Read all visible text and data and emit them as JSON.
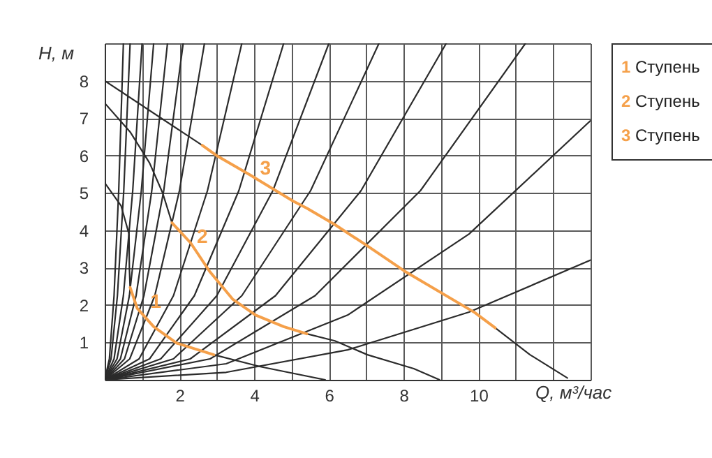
{
  "chart_data": {
    "type": "line",
    "xlabel": "Q, м³/час",
    "ylabel": "H, м",
    "xlim": [
      0,
      13
    ],
    "ylim": [
      0,
      9
    ],
    "xticks": [
      {
        "value": 0,
        "label": null
      },
      {
        "value": 1,
        "label": null
      },
      2,
      {
        "value": 3,
        "label": null
      },
      4,
      {
        "value": 5,
        "label": null
      },
      6,
      {
        "value": 7,
        "label": null
      },
      8,
      {
        "value": 9,
        "label": null
      },
      10,
      {
        "value": 11,
        "label": null
      },
      {
        "value": 12,
        "label": null
      },
      {
        "value": 13,
        "label": null
      }
    ],
    "yticks": [
      {
        "value": 0,
        "label": null
      },
      1,
      2,
      3,
      4,
      5,
      6,
      7,
      8,
      {
        "value": 9,
        "label": null
      }
    ],
    "grid": true,
    "marker": "none",
    "line_style": "solid",
    "annotations": [
      {
        "text": "1",
        "x": 1.37,
        "y": 1.73
      },
      {
        "text": "2",
        "x": 2.61,
        "y": 3.47
      },
      {
        "text": "3",
        "x": 4.3,
        "y": 5.3
      }
    ],
    "series": [
      {
        "color": "#2b2b2b",
        "x": [
          0,
          0.125,
          0.25,
          0.375,
          0.5
        ],
        "values": [
          0,
          0.56,
          2.25,
          5.06,
          9
        ]
      },
      {
        "color": "#2b2b2b",
        "x": [
          0,
          0.17,
          0.34,
          0.51,
          0.68
        ],
        "values": [
          0,
          0.56,
          2.25,
          5.06,
          9
        ]
      },
      {
        "color": "#2b2b2b",
        "x": [
          0,
          0.25,
          0.5,
          0.75,
          1.0
        ],
        "values": [
          0,
          0.56,
          2.25,
          5.06,
          9
        ]
      },
      {
        "color": "#2b2b2b",
        "x": [
          0,
          0.33,
          0.66,
          0.98,
          1.31
        ],
        "values": [
          0,
          0.56,
          2.25,
          5.06,
          9
        ]
      },
      {
        "color": "#2b2b2b",
        "x": [
          0,
          0.42,
          0.84,
          1.26,
          1.68
        ],
        "values": [
          0,
          0.56,
          2.25,
          5.06,
          9
        ]
      },
      {
        "color": "#2b2b2b",
        "x": [
          0,
          0.53,
          1.05,
          1.58,
          2.1
        ],
        "values": [
          0,
          0.56,
          2.25,
          5.06,
          9
        ]
      },
      {
        "color": "#2b2b2b",
        "x": [
          0,
          0.67,
          1.34,
          2.0,
          2.67
        ],
        "values": [
          0,
          0.56,
          2.25,
          5.06,
          9
        ]
      },
      {
        "color": "#2b2b2b",
        "x": [
          0,
          0.92,
          1.84,
          2.75,
          3.67
        ],
        "values": [
          0,
          0.56,
          2.25,
          5.06,
          9
        ]
      },
      {
        "color": "#2b2b2b",
        "x": [
          0,
          1.2,
          2.4,
          3.59,
          4.79
        ],
        "values": [
          0,
          0.56,
          2.25,
          5.06,
          9
        ]
      },
      {
        "color": "#2b2b2b",
        "x": [
          0,
          1.5,
          3.0,
          4.5,
          6.0
        ],
        "values": [
          0,
          0.56,
          2.25,
          5.06,
          9
        ]
      },
      {
        "color": "#2b2b2b",
        "x": [
          0,
          1.84,
          3.67,
          5.51,
          7.34
        ],
        "values": [
          0,
          0.56,
          2.25,
          5.06,
          9
        ]
      },
      {
        "color": "#2b2b2b",
        "x": [
          0,
          2.29,
          4.57,
          6.86,
          9.14
        ],
        "values": [
          0,
          0.56,
          2.25,
          5.06,
          9
        ]
      },
      {
        "color": "#2b2b2b",
        "x": [
          0,
          2.82,
          5.63,
          8.45,
          11.26
        ],
        "values": [
          0,
          0.56,
          2.25,
          5.06,
          9
        ]
      },
      {
        "color": "#2b2b2b",
        "x": [
          0,
          3.25,
          6.5,
          9.75,
          13
        ],
        "values": [
          0,
          0.43,
          1.73,
          3.9,
          6.93
        ]
      },
      {
        "color": "#2b2b2b",
        "x": [
          0,
          3.25,
          6.5,
          9.75,
          13
        ],
        "values": [
          0,
          0.2,
          0.8,
          1.81,
          3.2
        ]
      },
      {
        "color": "#2b2b2b",
        "x": [
          0,
          0.44,
          0.65,
          0.66,
          0.68
        ],
        "values": [
          5.27,
          4.65,
          3.9,
          3.0,
          2.47
        ]
      },
      {
        "color": "#2b2b2b",
        "x": [
          2.92,
          4.17,
          5.9
        ],
        "values": [
          0.67,
          0.35,
          0
        ]
      },
      {
        "color": "#2b2b2b",
        "x": [
          0,
          0.68,
          1.2,
          1.55,
          1.8
        ],
        "values": [
          7.4,
          6.63,
          5.8,
          5.0,
          4.2
        ]
      },
      {
        "color": "#2b2b2b",
        "x": [
          5.41,
          6.16,
          7.03,
          8.27,
          8.96
        ],
        "values": [
          1.23,
          1.04,
          0.67,
          0.3,
          0
        ]
      },
      {
        "color": "#2b2b2b",
        "x": [
          0,
          2.61
        ],
        "values": [
          8.0,
          6.27
        ]
      },
      {
        "color": "#2b2b2b",
        "x": [
          10.45,
          11.38,
          12.38
        ],
        "values": [
          1.39,
          0.67,
          0.05
        ]
      },
      {
        "name": "1 Ступень",
        "color": "#f5a04a",
        "x": [
          0.68,
          0.87,
          1.31,
          1.93,
          2.92
        ],
        "values": [
          2.47,
          1.91,
          1.42,
          0.98,
          0.67
        ]
      },
      {
        "name": "2 Ступень",
        "color": "#f5a04a",
        "x": [
          1.8,
          2.3,
          2.8,
          3.42,
          4.04,
          4.79,
          5.41
        ],
        "values": [
          4.2,
          3.66,
          2.91,
          2.16,
          1.73,
          1.42,
          1.23
        ]
      },
      {
        "name": "3 Ступень",
        "color": "#f5a04a",
        "x": [
          2.61,
          2.99,
          3.92,
          5.04,
          5.41,
          6.16,
          7.0,
          8.02,
          9.9,
          10.45
        ],
        "values": [
          6.27,
          6.0,
          5.46,
          4.78,
          4.59,
          4.15,
          3.6,
          2.91,
          1.8,
          1.39
        ]
      }
    ]
  }
}
